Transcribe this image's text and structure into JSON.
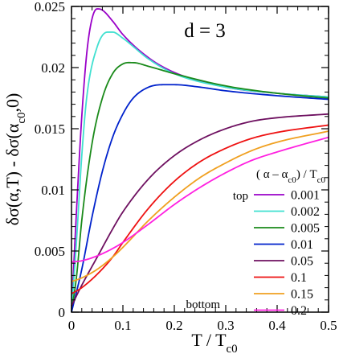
{
  "chart_data": {
    "type": "line",
    "title": "",
    "annotation": "d = 3",
    "annotation_color": "#0000ff",
    "xlabel": {
      "main": "T / T",
      "sub": "c0"
    },
    "ylabel": "δσ(α,T) - δσ(α_c0,0)",
    "ylabel_parts": [
      {
        "text": "δσ(α,T) - δσ(α",
        "sub": false
      },
      {
        "text": "c0",
        "sub": true
      },
      {
        "text": ",0)",
        "sub": false
      }
    ],
    "xlim": [
      0,
      0.5
    ],
    "ylim": [
      0,
      0.025
    ],
    "xticks": [
      0,
      0.1,
      0.2,
      0.3,
      0.4,
      0.5
    ],
    "xtick_labels": [
      "0",
      "0.1",
      "0.2",
      "0.3",
      "0.4",
      "0.5"
    ],
    "yticks": [
      0,
      0.005,
      0.01,
      0.015,
      0.02,
      0.025
    ],
    "ytick_labels": [
      "0",
      "0.005",
      "0.01",
      "0.015",
      "0.02",
      "0.025"
    ],
    "grid": false,
    "legend_title_parts": [
      {
        "text": "( α – α",
        "sub": false
      },
      {
        "text": "c0",
        "sub": true
      },
      {
        "text": ") / T",
        "sub": false
      },
      {
        "text": "c0",
        "sub": true
      }
    ],
    "legend_top_label": "top",
    "legend_bottom_label": "bottom",
    "legend_position": "bottom-right",
    "series": [
      {
        "name": "0.001",
        "color": "#9a00c8",
        "x": [
          0,
          0.01,
          0.02,
          0.03,
          0.04,
          0.05,
          0.06,
          0.08,
          0.1,
          0.15,
          0.2,
          0.3,
          0.4,
          0.5
        ],
        "y": [
          0,
          0.0085,
          0.016,
          0.0213,
          0.024,
          0.0248,
          0.0247,
          0.0238,
          0.0227,
          0.0208,
          0.0196,
          0.0184,
          0.0179,
          0.0176
        ]
      },
      {
        "name": "0.002",
        "color": "#40e0d0",
        "x": [
          0,
          0.01,
          0.02,
          0.03,
          0.05,
          0.07,
          0.08,
          0.1,
          0.15,
          0.2,
          0.3,
          0.4,
          0.5
        ],
        "y": [
          0,
          0.006,
          0.0128,
          0.0177,
          0.0217,
          0.0229,
          0.0229,
          0.0224,
          0.0207,
          0.0195,
          0.0184,
          0.0179,
          0.0176
        ]
      },
      {
        "name": "0.005",
        "color": "#1a8a1a",
        "x": [
          0,
          0.01,
          0.02,
          0.04,
          0.06,
          0.08,
          0.1,
          0.12,
          0.15,
          0.2,
          0.3,
          0.4,
          0.5
        ],
        "y": [
          0,
          0.003,
          0.0075,
          0.0138,
          0.0175,
          0.0195,
          0.0203,
          0.0204,
          0.0201,
          0.0195,
          0.0185,
          0.0179,
          0.0175
        ]
      },
      {
        "name": "0.01",
        "color": "#0022cc",
        "x": [
          0,
          0.02,
          0.04,
          0.06,
          0.08,
          0.1,
          0.12,
          0.15,
          0.18,
          0.2,
          0.25,
          0.3,
          0.4,
          0.5
        ],
        "y": [
          0,
          0.0035,
          0.0078,
          0.0115,
          0.0143,
          0.0162,
          0.0175,
          0.0184,
          0.0186,
          0.0186,
          0.0184,
          0.0181,
          0.0177,
          0.0174
        ]
      },
      {
        "name": "0.05",
        "color": "#6e1060",
        "x": [
          0,
          0.02,
          0.05,
          0.08,
          0.1,
          0.15,
          0.2,
          0.25,
          0.3,
          0.35,
          0.4,
          0.5
        ],
        "y": [
          0.0005,
          0.0022,
          0.0045,
          0.0068,
          0.0082,
          0.0109,
          0.0128,
          0.0141,
          0.015,
          0.0156,
          0.0159,
          0.0162
        ]
      },
      {
        "name": "0.1",
        "color": "#ee1111",
        "x": [
          0,
          0.02,
          0.05,
          0.08,
          0.1,
          0.15,
          0.2,
          0.25,
          0.3,
          0.35,
          0.4,
          0.5
        ],
        "y": [
          0.0015,
          0.002,
          0.0031,
          0.0045,
          0.0057,
          0.0085,
          0.0107,
          0.0123,
          0.0134,
          0.0142,
          0.0147,
          0.0153
        ]
      },
      {
        "name": "0.15",
        "color": "#f0a020",
        "x": [
          0,
          0.02,
          0.05,
          0.08,
          0.1,
          0.15,
          0.2,
          0.25,
          0.3,
          0.35,
          0.4,
          0.5
        ],
        "y": [
          0.0025,
          0.0028,
          0.0035,
          0.0045,
          0.0053,
          0.0075,
          0.0094,
          0.011,
          0.0122,
          0.0132,
          0.0139,
          0.0148
        ]
      },
      {
        "name": "0.2",
        "color": "#ff20e0",
        "x": [
          0,
          0.02,
          0.05,
          0.08,
          0.1,
          0.15,
          0.2,
          0.25,
          0.3,
          0.35,
          0.4,
          0.5
        ],
        "y": [
          0.0041,
          0.0042,
          0.0046,
          0.0052,
          0.0057,
          0.0072,
          0.0088,
          0.0102,
          0.0114,
          0.0124,
          0.0131,
          0.0143
        ]
      }
    ]
  }
}
